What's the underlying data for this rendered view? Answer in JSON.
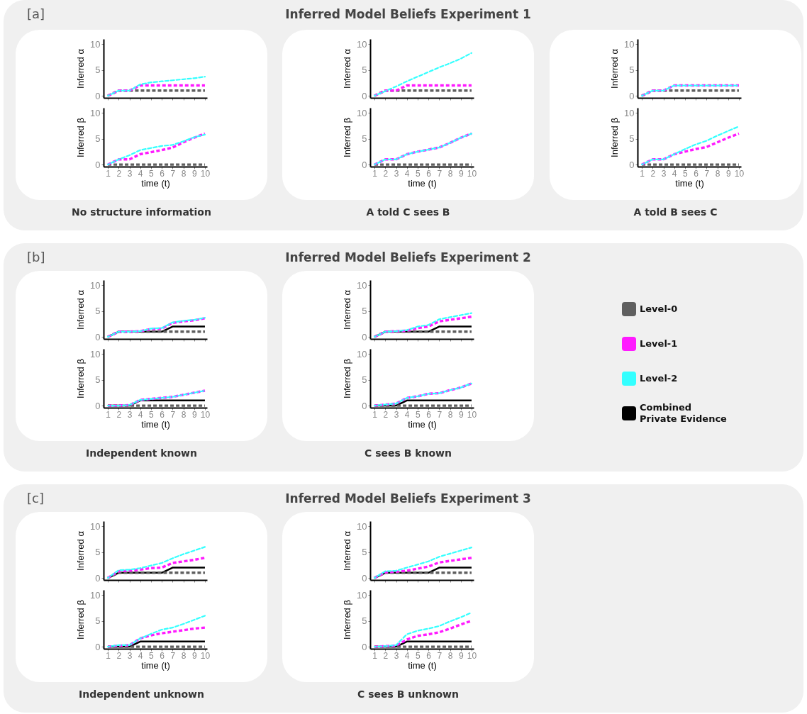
{
  "chart_data": [
    {
      "type": "line",
      "annotations": [
        "[a]"
      ],
      "x": [
        1,
        2,
        3,
        4,
        5,
        6,
        7,
        8,
        9,
        10
      ],
      "xlim": [
        0.6,
        10.2
      ],
      "xticks": [
        1,
        2,
        3,
        4,
        5,
        6,
        7,
        8,
        9,
        10
      ],
      "ylim": [
        -0.4,
        11
      ],
      "yticks": [
        0,
        5,
        10
      ],
      "ylabel": "Inferred α",
      "tick_labels": "y",
      "series": [
        {
          "color": "#5f5f5f",
          "line_style": "dashed",
          "values": [
            0,
            1,
            1,
            1,
            1,
            1,
            1,
            1,
            1,
            1
          ]
        },
        {
          "color": "#ff1aff",
          "line_style": "dashed",
          "values": [
            0,
            1,
            1,
            2,
            2,
            2,
            2,
            2,
            2,
            2
          ]
        },
        {
          "color": "#33ffff",
          "line_style": "dashed",
          "values": [
            0,
            1,
            1,
            2.2,
            2.6,
            2.8,
            3,
            3.2,
            3.4,
            3.7
          ]
        }
      ]
    },
    {
      "type": "line",
      "annotations": [
        "No structure information"
      ],
      "x": [
        1,
        2,
        3,
        4,
        5,
        6,
        7,
        8,
        9,
        10
      ],
      "xlim": [
        0.6,
        10.2
      ],
      "xticks": [
        1,
        2,
        3,
        4,
        5,
        6,
        7,
        8,
        9,
        10
      ],
      "ylim": [
        -0.4,
        11
      ],
      "yticks": [
        0,
        5,
        10
      ],
      "ylabel": "Inferred β",
      "xlabel": "time (t)",
      "series": [
        {
          "color": "#5f5f5f",
          "line_style": "dashed",
          "values": [
            0,
            0,
            0,
            0,
            0,
            0,
            0,
            0,
            0,
            0
          ]
        },
        {
          "color": "#ff1aff",
          "line_style": "dashed",
          "values": [
            0,
            1,
            1,
            2,
            2.4,
            2.8,
            3.3,
            4.3,
            5.2,
            6
          ]
        },
        {
          "color": "#33ffff",
          "line_style": "dashed",
          "values": [
            0,
            1,
            1.8,
            2.8,
            3.2,
            3.6,
            3.8,
            4.5,
            5.3,
            5.8
          ]
        }
      ]
    },
    {
      "type": "line",
      "title": "Inferred Model Beliefs Experiment 1",
      "x": [
        1,
        2,
        3,
        4,
        5,
        6,
        7,
        8,
        9,
        10
      ],
      "xlim": [
        0.6,
        10.2
      ],
      "xticks": [
        1,
        2,
        3,
        4,
        5,
        6,
        7,
        8,
        9,
        10
      ],
      "ylim": [
        -0.4,
        11
      ],
      "yticks": [
        0,
        5,
        10
      ],
      "ylabel": "Inferred α",
      "tick_labels": "y",
      "series": [
        {
          "color": "#5f5f5f",
          "line_style": "dashed",
          "values": [
            0,
            1,
            1,
            1,
            1,
            1,
            1,
            1,
            1,
            1
          ]
        },
        {
          "color": "#ff1aff",
          "line_style": "dashed",
          "values": [
            0,
            1,
            1,
            2,
            2,
            2,
            2,
            2,
            2,
            2
          ]
        },
        {
          "color": "#33ffff",
          "line_style": "dashed",
          "values": [
            0,
            0.9,
            1.8,
            2.8,
            3.7,
            4.6,
            5.5,
            6.3,
            7.2,
            8.3
          ]
        }
      ]
    },
    {
      "type": "line",
      "annotations": [
        "A told C sees B"
      ],
      "x": [
        1,
        2,
        3,
        4,
        5,
        6,
        7,
        8,
        9,
        10
      ],
      "xlim": [
        0.6,
        10.2
      ],
      "xticks": [
        1,
        2,
        3,
        4,
        5,
        6,
        7,
        8,
        9,
        10
      ],
      "ylim": [
        -0.4,
        11
      ],
      "yticks": [
        0,
        5,
        10
      ],
      "ylabel": "Inferred β",
      "xlabel": "time (t)",
      "series": [
        {
          "color": "#5f5f5f",
          "line_style": "dashed",
          "values": [
            0,
            0,
            0,
            0,
            0,
            0,
            0,
            0,
            0,
            0
          ]
        },
        {
          "color": "#ff1aff",
          "line_style": "dashed",
          "values": [
            0,
            1,
            1,
            2,
            2.5,
            2.9,
            3.3,
            4.2,
            5.2,
            6
          ]
        },
        {
          "color": "#33ffff",
          "line_style": "dashed",
          "values": [
            0,
            1,
            1,
            2,
            2.5,
            2.9,
            3.3,
            4.2,
            5.2,
            6
          ]
        }
      ]
    },
    {
      "type": "line",
      "x": [
        1,
        2,
        3,
        4,
        5,
        6,
        7,
        8,
        9,
        10
      ],
      "xlim": [
        0.6,
        10.2
      ],
      "xticks": [
        1,
        2,
        3,
        4,
        5,
        6,
        7,
        8,
        9,
        10
      ],
      "ylim": [
        -0.4,
        11
      ],
      "yticks": [
        0,
        5,
        10
      ],
      "ylabel": "Inferred α",
      "tick_labels": "y",
      "series": [
        {
          "color": "#5f5f5f",
          "line_style": "dashed",
          "values": [
            0,
            1,
            1,
            1,
            1,
            1,
            1,
            1,
            1,
            1
          ]
        },
        {
          "color": "#ff1aff",
          "line_style": "dashed",
          "values": [
            0,
            1,
            1,
            2,
            2,
            2,
            2,
            2,
            2,
            2
          ]
        },
        {
          "color": "#33ffff",
          "line_style": "dashed",
          "values": [
            0,
            1,
            1,
            2,
            2,
            2,
            2,
            2,
            2,
            2
          ]
        }
      ]
    },
    {
      "type": "line",
      "annotations": [
        "A told B sees C"
      ],
      "x": [
        1,
        2,
        3,
        4,
        5,
        6,
        7,
        8,
        9,
        10
      ],
      "xlim": [
        0.6,
        10.2
      ],
      "xticks": [
        1,
        2,
        3,
        4,
        5,
        6,
        7,
        8,
        9,
        10
      ],
      "ylim": [
        -0.4,
        11
      ],
      "yticks": [
        0,
        5,
        10
      ],
      "ylabel": "Inferred β",
      "xlabel": "time (t)",
      "series": [
        {
          "color": "#5f5f5f",
          "line_style": "dashed",
          "values": [
            0,
            0,
            0,
            0,
            0,
            0,
            0,
            0,
            0,
            0
          ]
        },
        {
          "color": "#ff1aff",
          "line_style": "dashed",
          "values": [
            0,
            1,
            1,
            2,
            2.5,
            3,
            3.4,
            4.3,
            5.2,
            6
          ]
        },
        {
          "color": "#33ffff",
          "line_style": "dashed",
          "values": [
            0,
            1,
            1,
            2,
            3,
            3.9,
            4.6,
            5.6,
            6.5,
            7.4
          ]
        }
      ]
    },
    {
      "type": "line",
      "annotations": [
        "[b]"
      ],
      "x": [
        1,
        2,
        3,
        4,
        5,
        6,
        7,
        8,
        9,
        10
      ],
      "xlim": [
        0.6,
        10.2
      ],
      "xticks": [
        1,
        2,
        3,
        4,
        5,
        6,
        7,
        8,
        9,
        10
      ],
      "ylim": [
        -0.4,
        11
      ],
      "yticks": [
        0,
        5,
        10
      ],
      "ylabel": "Inferred α",
      "tick_labels": "y",
      "series": [
        {
          "color": "#5f5f5f",
          "line_style": "dashed",
          "values": [
            0,
            1,
            1,
            1,
            1,
            1,
            1,
            1,
            1,
            1
          ]
        },
        {
          "color": "#ff1aff",
          "line_style": "dashed",
          "values": [
            0,
            1,
            1,
            1.1,
            1.5,
            1.6,
            2.7,
            3,
            3.2,
            3.6
          ]
        },
        {
          "color": "#33ffff",
          "line_style": "dashed",
          "values": [
            0,
            1,
            1,
            1.1,
            1.6,
            1.7,
            2.8,
            3.1,
            3.3,
            3.7
          ]
        },
        {
          "color": "#000000",
          "line_style": "solid",
          "values": [
            0,
            1,
            1,
            1,
            1,
            1,
            2,
            2,
            2,
            2
          ]
        }
      ]
    },
    {
      "type": "line",
      "annotations": [
        "Independent known"
      ],
      "x": [
        1,
        2,
        3,
        4,
        5,
        6,
        7,
        8,
        9,
        10
      ],
      "xlim": [
        0.6,
        10.2
      ],
      "xticks": [
        1,
        2,
        3,
        4,
        5,
        6,
        7,
        8,
        9,
        10
      ],
      "ylim": [
        -0.4,
        11
      ],
      "yticks": [
        0,
        5,
        10
      ],
      "ylabel": "Inferred β",
      "xlabel": "time (t)",
      "series": [
        {
          "color": "#5f5f5f",
          "line_style": "dashed",
          "values": [
            0,
            0,
            0,
            0,
            0,
            0,
            0,
            0,
            0,
            0
          ]
        },
        {
          "color": "#ff1aff",
          "line_style": "dashed",
          "values": [
            0,
            0,
            0.1,
            1.1,
            1.3,
            1.5,
            1.7,
            2.1,
            2.5,
            2.9
          ]
        },
        {
          "color": "#33ffff",
          "line_style": "dashed",
          "values": [
            0,
            0,
            0.1,
            1.1,
            1.3,
            1.5,
            1.7,
            2.1,
            2.5,
            2.9
          ]
        },
        {
          "color": "#000000",
          "line_style": "solid",
          "values": [
            0,
            0,
            0,
            1,
            1,
            1,
            1,
            1,
            1,
            1
          ]
        }
      ]
    },
    {
      "type": "line",
      "title": "Inferred Model Beliefs Experiment 2",
      "legend": "right",
      "x": [
        1,
        2,
        3,
        4,
        5,
        6,
        7,
        8,
        9,
        10
      ],
      "xlim": [
        0.6,
        10.2
      ],
      "xticks": [
        1,
        2,
        3,
        4,
        5,
        6,
        7,
        8,
        9,
        10
      ],
      "ylim": [
        -0.4,
        11
      ],
      "yticks": [
        0,
        5,
        10
      ],
      "ylabel": "Inferred α",
      "tick_labels": "y",
      "series": [
        {
          "name": "Level-0",
          "color": "#5f5f5f",
          "line_style": "dashed",
          "values": [
            0,
            1,
            1,
            1,
            1,
            1,
            1,
            1,
            1,
            1
          ]
        },
        {
          "name": "Level-1",
          "color": "#ff1aff",
          "line_style": "dashed",
          "values": [
            0,
            1,
            1.1,
            1.2,
            1.7,
            2,
            3,
            3.3,
            3.6,
            3.9
          ]
        },
        {
          "name": "Level-2",
          "color": "#33ffff",
          "line_style": "dashed",
          "values": [
            0,
            1,
            1.1,
            1.3,
            2,
            2.3,
            3.4,
            3.8,
            4.2,
            4.6
          ]
        },
        {
          "name": "Combined Private Evidence",
          "color": "#000000",
          "line_style": "solid",
          "values": [
            0,
            1,
            1,
            1,
            1,
            1,
            2,
            2,
            2,
            2
          ]
        }
      ]
    },
    {
      "type": "line",
      "annotations": [
        "C sees B known"
      ],
      "x": [
        1,
        2,
        3,
        4,
        5,
        6,
        7,
        8,
        9,
        10
      ],
      "xlim": [
        0.6,
        10.2
      ],
      "xticks": [
        1,
        2,
        3,
        4,
        5,
        6,
        7,
        8,
        9,
        10
      ],
      "ylim": [
        -0.4,
        11
      ],
      "yticks": [
        0,
        5,
        10
      ],
      "ylabel": "Inferred β",
      "xlabel": "time (t)",
      "series": [
        {
          "color": "#5f5f5f",
          "line_style": "dashed",
          "values": [
            0,
            0,
            0,
            0,
            0,
            0,
            0,
            0,
            0,
            0
          ]
        },
        {
          "color": "#ff1aff",
          "line_style": "dashed",
          "values": [
            0,
            0.2,
            0.4,
            1.5,
            1.8,
            2.3,
            2.4,
            3,
            3.5,
            4.3
          ]
        },
        {
          "color": "#33ffff",
          "line_style": "dashed",
          "values": [
            0,
            0.2,
            0.4,
            1.5,
            1.8,
            2.3,
            2.4,
            3,
            3.5,
            4.3
          ]
        },
        {
          "color": "#000000",
          "line_style": "solid",
          "values": [
            0,
            0,
            0,
            1,
            1,
            1,
            1,
            1,
            1,
            1
          ]
        }
      ]
    },
    {
      "type": "line",
      "annotations": [
        "[c]"
      ],
      "x": [
        1,
        2,
        3,
        4,
        5,
        6,
        7,
        8,
        9,
        10
      ],
      "xlim": [
        0.6,
        10.2
      ],
      "xticks": [
        1,
        2,
        3,
        4,
        5,
        6,
        7,
        8,
        9,
        10
      ],
      "ylim": [
        -0.4,
        11
      ],
      "yticks": [
        0,
        5,
        10
      ],
      "ylabel": "Inferred α",
      "tick_labels": "y",
      "series": [
        {
          "color": "#5f5f5f",
          "line_style": "dashed",
          "values": [
            0,
            1,
            1,
            1,
            1,
            1,
            1,
            1,
            1,
            1
          ]
        },
        {
          "color": "#ff1aff",
          "line_style": "dashed",
          "values": [
            0,
            1.3,
            1.4,
            1.6,
            1.9,
            2,
            2.9,
            3.2,
            3.5,
            3.9
          ]
        },
        {
          "color": "#33ffff",
          "line_style": "dashed",
          "values": [
            0,
            1.5,
            1.6,
            1.9,
            2.4,
            2.9,
            3.8,
            4.6,
            5.3,
            6
          ]
        },
        {
          "color": "#000000",
          "line_style": "solid",
          "values": [
            0,
            1,
            1,
            1,
            1,
            1,
            2,
            2,
            2,
            2
          ]
        }
      ]
    },
    {
      "type": "line",
      "annotations": [
        "Independent unknown"
      ],
      "x": [
        1,
        2,
        3,
        4,
        5,
        6,
        7,
        8,
        9,
        10
      ],
      "xlim": [
        0.6,
        10.2
      ],
      "xticks": [
        1,
        2,
        3,
        4,
        5,
        6,
        7,
        8,
        9,
        10
      ],
      "ylim": [
        -0.4,
        11
      ],
      "yticks": [
        0,
        5,
        10
      ],
      "ylabel": "Inferred β",
      "xlabel": "time (t)",
      "series": [
        {
          "color": "#5f5f5f",
          "line_style": "dashed",
          "values": [
            0,
            0,
            0,
            0,
            0,
            0,
            0,
            0,
            0,
            0
          ]
        },
        {
          "color": "#ff1aff",
          "line_style": "dashed",
          "values": [
            0,
            0.2,
            0.3,
            1.6,
            2.2,
            2.6,
            2.9,
            3.2,
            3.5,
            3.7
          ]
        },
        {
          "color": "#33ffff",
          "line_style": "dashed",
          "values": [
            0,
            0.3,
            0.3,
            1.6,
            2.5,
            3.3,
            3.7,
            4.4,
            5.2,
            6
          ]
        },
        {
          "color": "#000000",
          "line_style": "solid",
          "values": [
            0,
            0,
            0,
            1,
            1,
            1,
            1,
            1,
            1,
            1
          ]
        }
      ]
    },
    {
      "type": "line",
      "title": "Inferred Model Beliefs Experiment 3",
      "x": [
        1,
        2,
        3,
        4,
        5,
        6,
        7,
        8,
        9,
        10
      ],
      "xlim": [
        0.6,
        10.2
      ],
      "xticks": [
        1,
        2,
        3,
        4,
        5,
        6,
        7,
        8,
        9,
        10
      ],
      "ylim": [
        -0.4,
        11
      ],
      "yticks": [
        0,
        5,
        10
      ],
      "ylabel": "Inferred α",
      "tick_labels": "y",
      "series": [
        {
          "color": "#5f5f5f",
          "line_style": "dashed",
          "values": [
            0,
            1,
            1,
            1,
            1,
            1,
            1,
            1,
            1,
            1
          ]
        },
        {
          "color": "#ff1aff",
          "line_style": "dashed",
          "values": [
            0,
            1.1,
            1.2,
            1.4,
            1.8,
            2.2,
            3,
            3.3,
            3.6,
            3.9
          ]
        },
        {
          "color": "#33ffff",
          "line_style": "dashed",
          "values": [
            0,
            1.3,
            1.4,
            2,
            2.6,
            3.2,
            4.1,
            4.7,
            5.3,
            5.9
          ]
        },
        {
          "color": "#000000",
          "line_style": "solid",
          "values": [
            0,
            1,
            1,
            1,
            1,
            1,
            2,
            2,
            2,
            2
          ]
        }
      ]
    },
    {
      "type": "line",
      "annotations": [
        "C sees B unknown"
      ],
      "x": [
        1,
        2,
        3,
        4,
        5,
        6,
        7,
        8,
        9,
        10
      ],
      "xlim": [
        0.6,
        10.2
      ],
      "xticks": [
        1,
        2,
        3,
        4,
        5,
        6,
        7,
        8,
        9,
        10
      ],
      "ylim": [
        -0.4,
        11
      ],
      "yticks": [
        0,
        5,
        10
      ],
      "ylabel": "Inferred β",
      "xlabel": "time (t)",
      "series": [
        {
          "color": "#5f5f5f",
          "line_style": "dashed",
          "values": [
            0,
            0,
            0,
            0,
            0,
            0,
            0,
            0,
            0,
            0
          ]
        },
        {
          "color": "#ff1aff",
          "line_style": "dashed",
          "values": [
            0,
            0.1,
            0.2,
            1.4,
            2.1,
            2.4,
            2.8,
            3.5,
            4.3,
            5
          ]
        },
        {
          "color": "#33ffff",
          "line_style": "dashed",
          "values": [
            0,
            0.1,
            0.3,
            2.4,
            3.1,
            3.5,
            4,
            4.9,
            5.7,
            6.6
          ]
        },
        {
          "color": "#000000",
          "line_style": "solid",
          "values": [
            0,
            0,
            0,
            1,
            1,
            1,
            1,
            1,
            1,
            1
          ]
        }
      ]
    }
  ]
}
